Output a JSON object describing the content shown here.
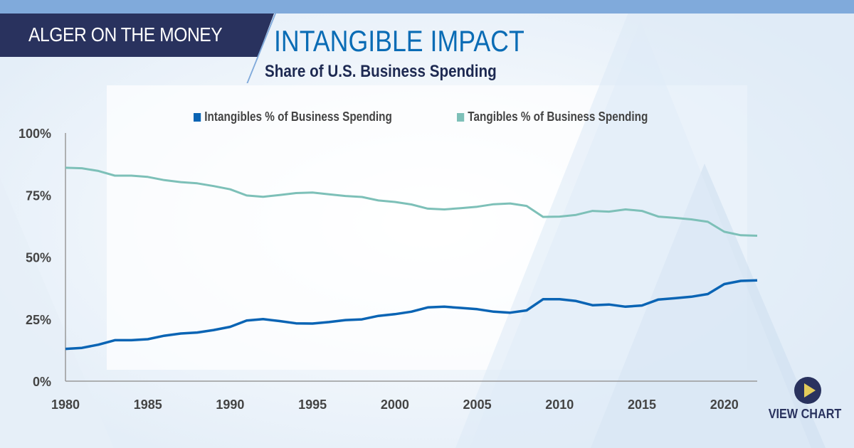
{
  "header": {
    "brand": "ALGER ON THE MONEY",
    "title": "INTANGIBLE IMPACT",
    "subtitle": "Share of U.S. Business Spending"
  },
  "cta": {
    "label": "VIEW CHART",
    "icon": "play-icon"
  },
  "colors": {
    "navy": "#29325e",
    "intangibles": "#0a64b4",
    "tangibles": "#7dc0b8",
    "accent": "#e3cc5a"
  },
  "chart_data": {
    "type": "line",
    "title": "Share of U.S. Business Spending",
    "xlim": [
      1980,
      2022
    ],
    "ylim": [
      0,
      100
    ],
    "x_ticks": [
      "1980",
      "1985",
      "1990",
      "1995",
      "2000",
      "2005",
      "2010",
      "2015",
      "2020"
    ],
    "y_ticks": [
      "0%",
      "25%",
      "50%",
      "75%",
      "100%"
    ],
    "legend_position": "top",
    "grid": false,
    "x": [
      1980,
      1981,
      1982,
      1983,
      1984,
      1985,
      1986,
      1987,
      1988,
      1989,
      1990,
      1991,
      1992,
      1993,
      1994,
      1995,
      1996,
      1997,
      1998,
      1999,
      2000,
      2001,
      2002,
      2003,
      2004,
      2005,
      2006,
      2007,
      2008,
      2009,
      2010,
      2011,
      2012,
      2013,
      2014,
      2015,
      2016,
      2017,
      2018,
      2019,
      2020,
      2021,
      2022
    ],
    "series": [
      {
        "name": "Intangibles % of Business Spending",
        "color": "#0a64b4",
        "values": [
          13,
          13.4,
          14.7,
          16.5,
          16.5,
          16.9,
          18.3,
          19.2,
          19.6,
          20.6,
          21.9,
          24.4,
          25,
          24.2,
          23.3,
          23.2,
          23.8,
          24.6,
          24.9,
          26.3,
          27,
          28,
          29.7,
          30,
          29.5,
          29,
          28,
          27.6,
          28.5,
          33,
          33,
          32.3,
          30.6,
          30.9,
          30,
          30.5,
          32.9,
          33.4,
          34,
          35.1,
          39.1,
          40.4,
          40.6
        ]
      },
      {
        "name": "Tangibles % of Business Spending",
        "color": "#7dc0b8",
        "values": [
          86,
          85.8,
          84.7,
          82.8,
          82.8,
          82.3,
          81,
          80.2,
          79.7,
          78.6,
          77.3,
          74.8,
          74.3,
          75,
          75.8,
          76,
          75.3,
          74.6,
          74.2,
          72.8,
          72.2,
          71.2,
          69.5,
          69.2,
          69.7,
          70.3,
          71.3,
          71.6,
          70.6,
          66.2,
          66.3,
          67,
          68.6,
          68.3,
          69.2,
          68.6,
          66.3,
          65.8,
          65.2,
          64.2,
          60.2,
          58.8,
          58.6
        ]
      }
    ]
  }
}
